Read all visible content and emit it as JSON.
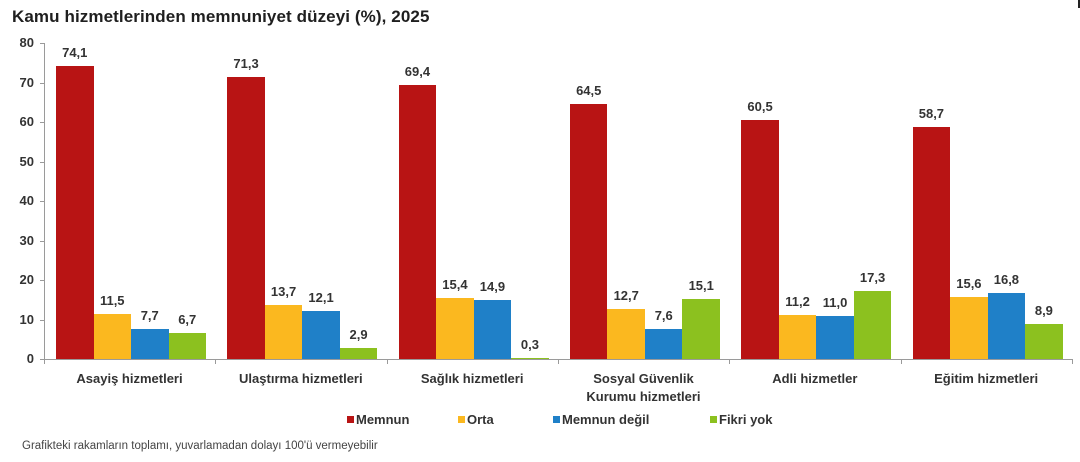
{
  "title": "Kamu hizmetlerinden memnuniyet düzeyi (%), 2025",
  "footnote": "Grafikteki rakamların toplamı, yuvarlamadan dolayı 100'ü vermeyebilir",
  "colors": {
    "memnun": "#b81414",
    "orta": "#fbb81f",
    "memnun_degil": "#1f80c8",
    "fikri_yok": "#8cc11f"
  },
  "legend": [
    {
      "label": "Memnun",
      "color": "#b81414"
    },
    {
      "label": "Orta",
      "color": "#fbb81f"
    },
    {
      "label": "Memnun değil",
      "color": "#1f80c8"
    },
    {
      "label": "Fikri yok",
      "color": "#8cc11f"
    }
  ],
  "y_ticks": [
    "0",
    "10",
    "20",
    "30",
    "40",
    "50",
    "60",
    "70",
    "80"
  ],
  "categories_display": [
    [
      "Asayiş hizmetleri"
    ],
    [
      "Ulaştırma hizmetleri"
    ],
    [
      "Sağlık hizmetleri"
    ],
    [
      "Sosyal Güvenlik",
      "Kurumu hizmetleri"
    ],
    [
      "Adli hizmetler"
    ],
    [
      "Eğitim hizmetleri"
    ]
  ],
  "value_labels": [
    [
      "74,1",
      "11,5",
      "7,7",
      "6,7"
    ],
    [
      "71,3",
      "13,7",
      "12,1",
      "2,9"
    ],
    [
      "69,4",
      "15,4",
      "14,9",
      "0,3"
    ],
    [
      "64,5",
      "12,7",
      "7,6",
      "15,1"
    ],
    [
      "60,5",
      "11,2",
      "11,0",
      "17,3"
    ],
    [
      "58,7",
      "15,6",
      "16,8",
      "8,9"
    ]
  ],
  "chart_data": {
    "type": "bar",
    "title": "Kamu hizmetlerinden memnuniyet düzeyi (%), 2025",
    "xlabel": "",
    "ylabel": "",
    "ylim": [
      0,
      80
    ],
    "y_ticks": [
      0,
      10,
      20,
      30,
      40,
      50,
      60,
      70,
      80
    ],
    "grid": false,
    "legend_position": "bottom",
    "categories": [
      "Asayiş hizmetleri",
      "Ulaştırma hizmetleri",
      "Sağlık hizmetleri",
      "Sosyal Güvenlik Kurumu hizmetleri",
      "Adli hizmetler",
      "Eğitim hizmetleri"
    ],
    "series": [
      {
        "name": "Memnun",
        "color": "#b81414",
        "values": [
          74.1,
          71.3,
          69.4,
          64.5,
          60.5,
          58.7
        ]
      },
      {
        "name": "Orta",
        "color": "#fbb81f",
        "values": [
          11.5,
          13.7,
          15.4,
          12.7,
          11.2,
          15.6
        ]
      },
      {
        "name": "Memnun değil",
        "color": "#1f80c8",
        "values": [
          7.7,
          12.1,
          14.9,
          7.6,
          11.0,
          16.8
        ]
      },
      {
        "name": "Fikri yok",
        "color": "#8cc11f",
        "values": [
          6.7,
          2.9,
          0.3,
          15.1,
          17.3,
          8.9
        ]
      }
    ],
    "annotations": [
      "Grafikteki rakamların toplamı, yuvarlamadan dolayı 100'ü vermeyebilir"
    ]
  }
}
